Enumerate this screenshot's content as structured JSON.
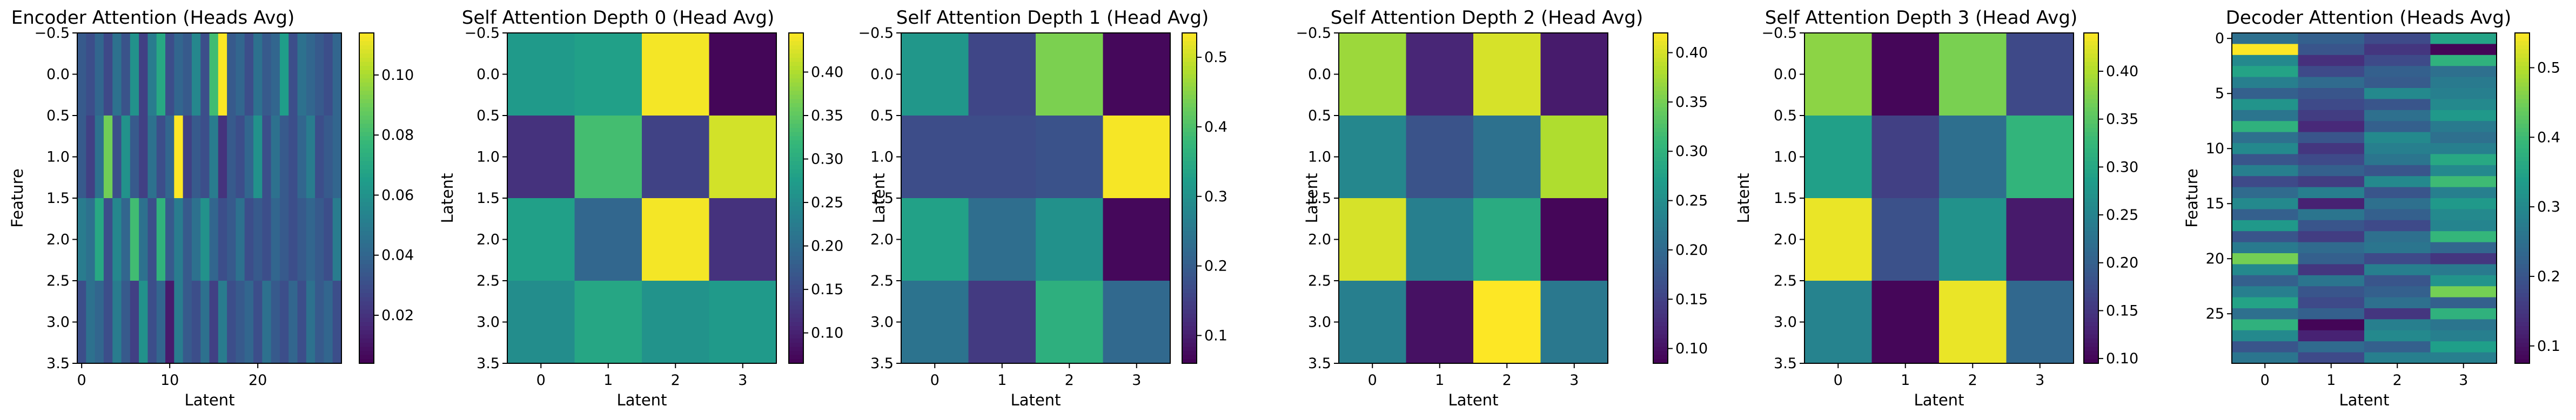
{
  "colormap": "viridis",
  "chart_data": [
    {
      "type": "heatmap",
      "id": "encoder",
      "title": "Encoder Attention (Heads Avg)",
      "xlabel": "Latent",
      "ylabel": "Feature",
      "x_ticks": [
        0,
        10,
        20
      ],
      "y_ticks": [
        "−0.5",
        "0.0",
        "0.5",
        "1.0",
        "1.5",
        "2.0",
        "2.5",
        "3.0",
        "3.5"
      ],
      "vmin": 0.004,
      "vmax": 0.114,
      "colorbar_ticks": [
        0.02,
        0.04,
        0.06,
        0.08,
        0.1
      ],
      "values": [
        [
          0.035,
          0.03,
          0.04,
          0.028,
          0.045,
          0.032,
          0.06,
          0.025,
          0.05,
          0.07,
          0.03,
          0.04,
          0.035,
          0.055,
          0.03,
          0.08,
          0.114,
          0.035,
          0.04,
          0.03,
          0.045,
          0.035,
          0.04,
          0.065,
          0.03,
          0.045,
          0.04,
          0.035,
          0.03,
          0.04
        ],
        [
          0.035,
          0.025,
          0.045,
          0.09,
          0.03,
          0.06,
          0.035,
          0.025,
          0.045,
          0.03,
          0.04,
          0.114,
          0.025,
          0.035,
          0.03,
          0.05,
          0.02,
          0.035,
          0.03,
          0.04,
          0.06,
          0.03,
          0.045,
          0.035,
          0.03,
          0.04,
          0.05,
          0.03,
          0.035,
          0.04
        ],
        [
          0.05,
          0.045,
          0.07,
          0.03,
          0.055,
          0.04,
          0.08,
          0.045,
          0.03,
          0.075,
          0.035,
          0.05,
          0.035,
          0.045,
          0.06,
          0.04,
          0.03,
          0.035,
          0.045,
          0.03,
          0.035,
          0.03,
          0.04,
          0.035,
          0.03,
          0.035,
          0.04,
          0.035,
          0.03,
          0.05
        ],
        [
          0.03,
          0.045,
          0.04,
          0.03,
          0.05,
          0.035,
          0.025,
          0.06,
          0.03,
          0.04,
          0.012,
          0.05,
          0.035,
          0.03,
          0.045,
          0.025,
          0.05,
          0.03,
          0.035,
          0.04,
          0.03,
          0.045,
          0.035,
          0.03,
          0.04,
          0.03,
          0.045,
          0.035,
          0.04,
          0.03
        ]
      ]
    },
    {
      "type": "heatmap",
      "id": "sa0",
      "title": "Self Attention Depth 0 (Head Avg)",
      "xlabel": "Latent",
      "ylabel": "Latent",
      "x_ticks": [
        0,
        1,
        2,
        3
      ],
      "y_ticks": [
        "−0.5",
        "0.0",
        "0.5",
        "1.0",
        "1.5",
        "2.0",
        "2.5",
        "3.0",
        "3.5"
      ],
      "vmin": 0.065,
      "vmax": 0.445,
      "colorbar_ticks": [
        0.1,
        0.15,
        0.2,
        0.25,
        0.3,
        0.35,
        0.4
      ],
      "values": [
        [
          0.27,
          0.28,
          0.44,
          0.07
        ],
        [
          0.12,
          0.33,
          0.14,
          0.42
        ],
        [
          0.28,
          0.19,
          0.44,
          0.12
        ],
        [
          0.25,
          0.29,
          0.26,
          0.27
        ]
      ]
    },
    {
      "type": "heatmap",
      "id": "sa1",
      "title": "Self Attention Depth 1 (Head Avg)",
      "xlabel": "Latent",
      "ylabel": "Latent",
      "x_ticks": [
        0,
        1,
        2,
        3
      ],
      "y_ticks": [
        "−0.5",
        "0.0",
        "0.5",
        "1.0",
        "1.5",
        "2.0",
        "2.5",
        "3.0",
        "3.5"
      ],
      "vmin": 0.06,
      "vmax": 0.535,
      "colorbar_ticks": [
        0.1,
        0.2,
        0.3,
        0.4,
        0.5
      ],
      "values": [
        [
          0.31,
          0.16,
          0.44,
          0.07
        ],
        [
          0.17,
          0.17,
          0.18,
          0.53
        ],
        [
          0.33,
          0.23,
          0.3,
          0.07
        ],
        [
          0.24,
          0.14,
          0.36,
          0.22
        ]
      ]
    },
    {
      "type": "heatmap",
      "id": "sa2",
      "title": "Self Attention Depth 2 (Head Avg)",
      "xlabel": "Latent",
      "ylabel": "Latent",
      "x_ticks": [
        0,
        1,
        2,
        3
      ],
      "y_ticks": [
        "−0.5",
        "0.0",
        "0.5",
        "1.0",
        "1.5",
        "2.0",
        "2.5",
        "3.0",
        "3.5"
      ],
      "vmin": 0.085,
      "vmax": 0.42,
      "colorbar_ticks": [
        0.1,
        0.15,
        0.2,
        0.25,
        0.3,
        0.35,
        0.4
      ],
      "values": [
        [
          0.37,
          0.12,
          0.4,
          0.11
        ],
        [
          0.24,
          0.17,
          0.21,
          0.38
        ],
        [
          0.4,
          0.23,
          0.29,
          0.09
        ],
        [
          0.23,
          0.1,
          0.42,
          0.22
        ]
      ]
    },
    {
      "type": "heatmap",
      "id": "sa3",
      "title": "Self Attention Depth 3 (Head Avg)",
      "xlabel": "Latent",
      "ylabel": "Latent",
      "x_ticks": [
        0,
        1,
        2,
        3
      ],
      "y_ticks": [
        "−0.5",
        "0.0",
        "0.5",
        "1.0",
        "1.5",
        "2.0",
        "2.5",
        "3.0",
        "3.5"
      ],
      "vmin": 0.095,
      "vmax": 0.44,
      "colorbar_ticks": [
        0.1,
        0.15,
        0.2,
        0.25,
        0.3,
        0.35,
        0.4
      ],
      "values": [
        [
          0.38,
          0.1,
          0.37,
          0.17
        ],
        [
          0.29,
          0.16,
          0.22,
          0.32
        ],
        [
          0.43,
          0.18,
          0.27,
          0.12
        ],
        [
          0.25,
          0.1,
          0.43,
          0.21
        ]
      ]
    },
    {
      "type": "heatmap",
      "id": "decoder",
      "title": "Decoder Attention (Heads Avg)",
      "xlabel": "Latent",
      "ylabel": "Feature",
      "x_ticks": [
        0,
        1,
        2,
        3
      ],
      "y_ticks": [
        0,
        5,
        10,
        15,
        20,
        25
      ],
      "vmin": 0.075,
      "vmax": 0.55,
      "colorbar_ticks": [
        0.1,
        0.2,
        0.3,
        0.4,
        0.5
      ],
      "values": [
        [
          0.25,
          0.22,
          0.18,
          0.35
        ],
        [
          0.55,
          0.2,
          0.15,
          0.08
        ],
        [
          0.3,
          0.14,
          0.18,
          0.38
        ],
        [
          0.35,
          0.18,
          0.22,
          0.25
        ],
        [
          0.28,
          0.24,
          0.21,
          0.27
        ],
        [
          0.22,
          0.2,
          0.3,
          0.28
        ],
        [
          0.32,
          0.18,
          0.2,
          0.3
        ],
        [
          0.26,
          0.16,
          0.25,
          0.33
        ],
        [
          0.38,
          0.13,
          0.22,
          0.27
        ],
        [
          0.25,
          0.2,
          0.3,
          0.25
        ],
        [
          0.3,
          0.15,
          0.28,
          0.28
        ],
        [
          0.2,
          0.18,
          0.26,
          0.36
        ],
        [
          0.28,
          0.22,
          0.2,
          0.3
        ],
        [
          0.18,
          0.16,
          0.3,
          0.4
        ],
        [
          0.24,
          0.28,
          0.2,
          0.28
        ],
        [
          0.3,
          0.12,
          0.25,
          0.33
        ],
        [
          0.22,
          0.26,
          0.22,
          0.3
        ],
        [
          0.33,
          0.2,
          0.18,
          0.29
        ],
        [
          0.2,
          0.16,
          0.25,
          0.39
        ],
        [
          0.27,
          0.24,
          0.26,
          0.23
        ],
        [
          0.45,
          0.22,
          0.18,
          0.15
        ],
        [
          0.3,
          0.15,
          0.28,
          0.27
        ],
        [
          0.22,
          0.26,
          0.2,
          0.32
        ],
        [
          0.28,
          0.2,
          0.22,
          0.45
        ],
        [
          0.35,
          0.18,
          0.25,
          0.22
        ],
        [
          0.25,
          0.22,
          0.15,
          0.38
        ],
        [
          0.38,
          0.08,
          0.28,
          0.26
        ],
        [
          0.3,
          0.12,
          0.3,
          0.28
        ],
        [
          0.2,
          0.24,
          0.22,
          0.34
        ],
        [
          0.26,
          0.18,
          0.28,
          0.28
        ]
      ]
    }
  ]
}
